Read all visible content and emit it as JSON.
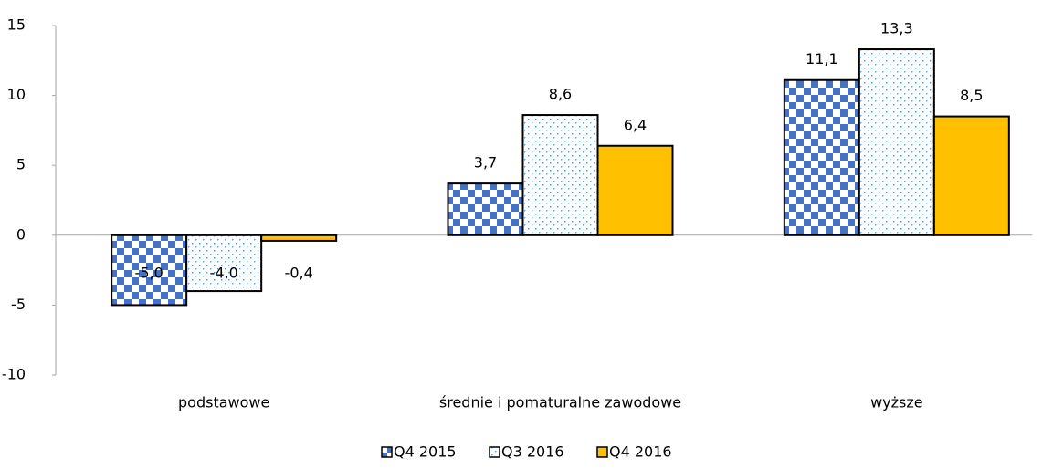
{
  "chart_data": {
    "type": "bar",
    "categories": [
      "podstawowe",
      "średnie i pomaturalne zawodowe",
      "wyższe"
    ],
    "series": [
      {
        "name": "Q4 2015",
        "color": "#4472c4",
        "pattern": "checker",
        "values": [
          -5.0,
          3.7,
          11.1
        ],
        "value_labels": [
          "-5,0",
          "3,7",
          "11,1"
        ]
      },
      {
        "name": "Q3 2016",
        "color": "#5b9bd5",
        "pattern": "dots",
        "values": [
          -4.0,
          8.6,
          13.3
        ],
        "value_labels": [
          "-4,0",
          "8,6",
          "13,3"
        ]
      },
      {
        "name": "Q4 2016",
        "color": "#ffc000",
        "pattern": "solid",
        "values": [
          -0.4,
          6.4,
          8.5
        ],
        "value_labels": [
          "-0,4",
          "6,4",
          "8,5"
        ]
      }
    ],
    "ylim": [
      -10,
      15
    ],
    "yticks": [
      15,
      10,
      5,
      0,
      -5,
      -10
    ],
    "grid": false,
    "legend": "bottom"
  }
}
